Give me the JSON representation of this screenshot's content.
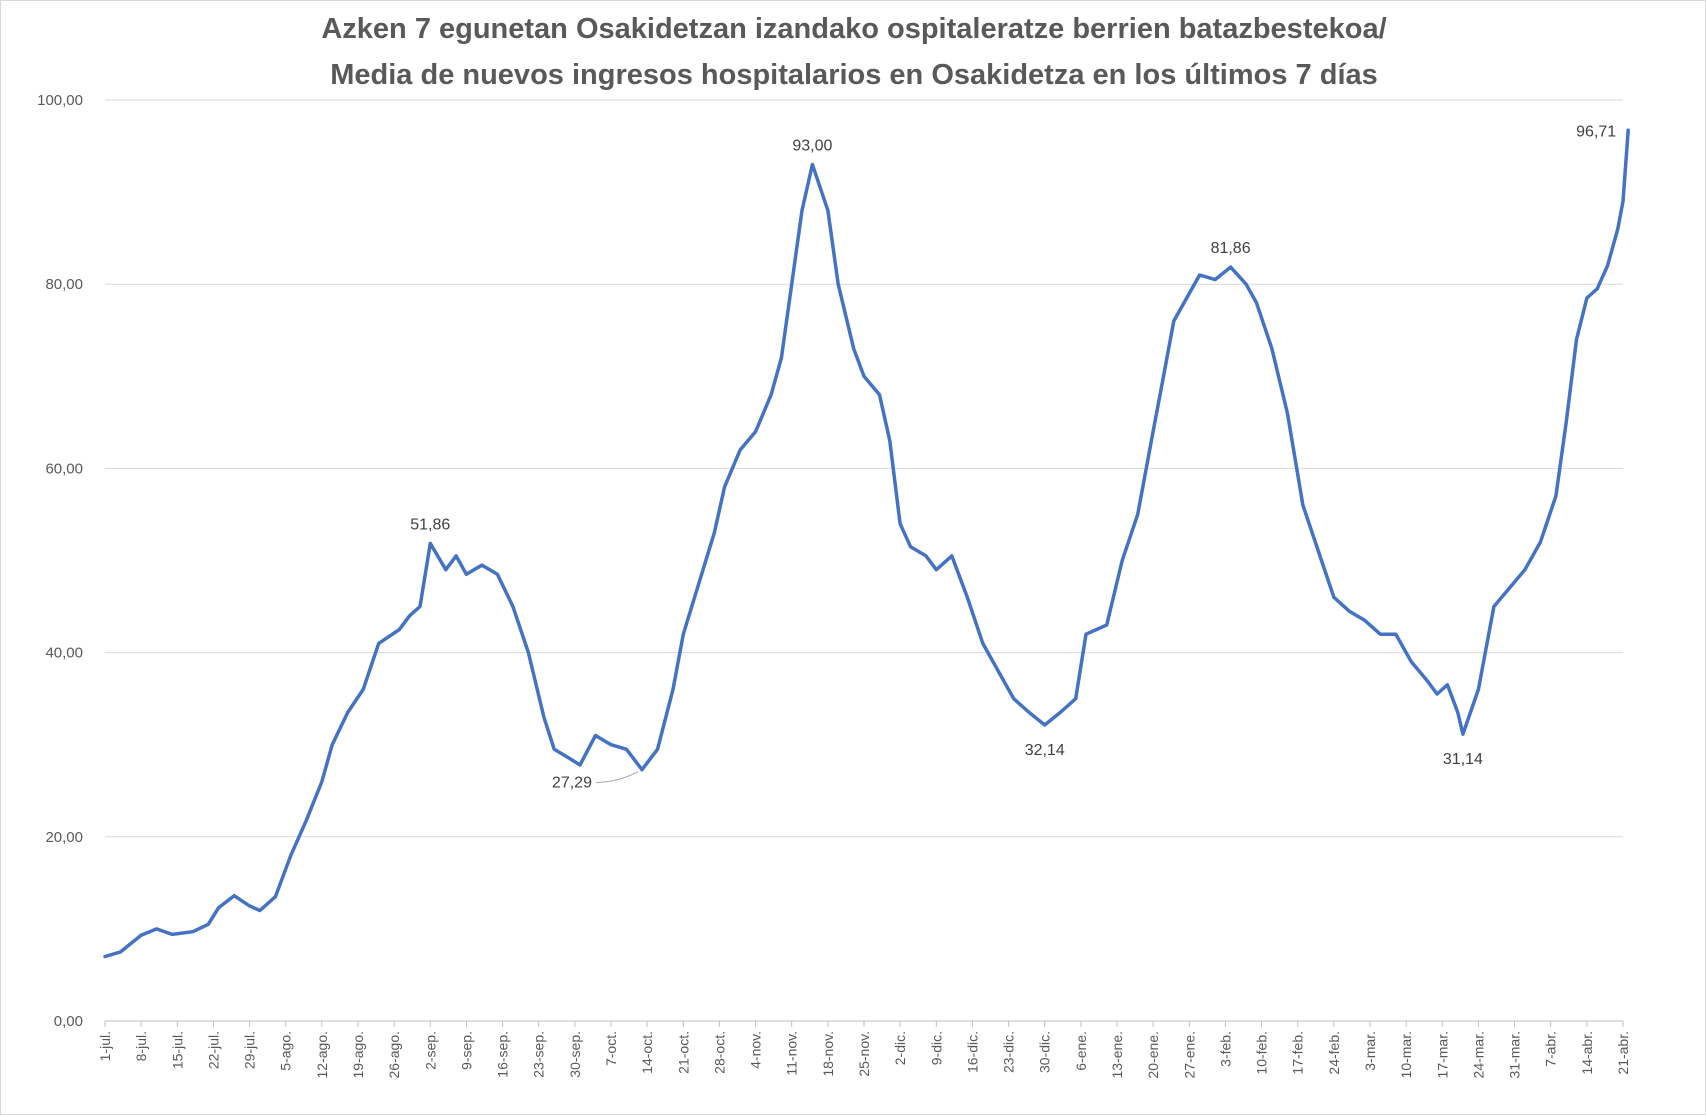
{
  "chart_data": {
    "type": "line",
    "title_line1": "Azken 7 egunetan Osakidetzan izandako ospitaleratze berrien batazbestekoa/",
    "title_line2": "Media de nuevos ingresos hospitalarios en Osakidetza en los últimos 7 días",
    "ylim": [
      0,
      100
    ],
    "yticks": [
      "0,00",
      "20,00",
      "40,00",
      "60,00",
      "80,00",
      "100,00"
    ],
    "grid": true,
    "legend": "none",
    "series_color": "#4472c4",
    "x_start": "1-jul.",
    "x_end": "21-abr.",
    "x_tick_labels": [
      "1-jul.",
      "8-jul.",
      "15-jul.",
      "22-jul.",
      "29-jul.",
      "5-ago.",
      "12-ago.",
      "19-ago.",
      "26-ago.",
      "2-sep.",
      "9-sep.",
      "16-sep.",
      "23-sep.",
      "30-sep.",
      "7-oct.",
      "14-oct.",
      "21-oct.",
      "28-oct.",
      "4-nov.",
      "11-nov.",
      "18-nov.",
      "25-nov.",
      "2-dic.",
      "9-dic.",
      "16-dic.",
      "23-dic.",
      "30-dic.",
      "6-ene.",
      "13-ene.",
      "20-ene.",
      "27-ene.",
      "3-feb.",
      "10-feb.",
      "17-feb.",
      "24-feb.",
      "3-mar.",
      "10-mar.",
      "17-mar.",
      "24-mar.",
      "31-mar.",
      "7-abr.",
      "14-abr.",
      "21-abr."
    ],
    "series": [
      {
        "points": [
          [
            "1-jul.",
            7.0
          ],
          [
            "4-jul.",
            7.5
          ],
          [
            "8-jul.",
            9.3
          ],
          [
            "11-jul.",
            10.0
          ],
          [
            "14-jul.",
            9.4
          ],
          [
            "18-jul.",
            9.7
          ],
          [
            "21-jul.",
            10.5
          ],
          [
            "23-jul.",
            12.3
          ],
          [
            "26-jul.",
            13.6
          ],
          [
            "29-jul.",
            12.5
          ],
          [
            "31-jul.",
            12.0
          ],
          [
            "3-ago.",
            13.5
          ],
          [
            "6-ago.",
            18.0
          ],
          [
            "9-ago.",
            21.8
          ],
          [
            "12-ago.",
            26.0
          ],
          [
            "14-ago.",
            30.0
          ],
          [
            "17-ago.",
            33.5
          ],
          [
            "20-ago.",
            36.0
          ],
          [
            "23-ago.",
            41.0
          ],
          [
            "27-ago.",
            42.5
          ],
          [
            "29-ago.",
            44.0
          ],
          [
            "31-ago.",
            45.0
          ],
          [
            "2-sep.",
            51.86
          ],
          [
            "5-sep.",
            49.0
          ],
          [
            "7-sep.",
            50.5
          ],
          [
            "9-sep.",
            48.5
          ],
          [
            "12-sep.",
            49.5
          ],
          [
            "15-sep.",
            48.5
          ],
          [
            "18-sep.",
            45.0
          ],
          [
            "21-sep.",
            40.0
          ],
          [
            "24-sep.",
            33.0
          ],
          [
            "26-sep.",
            29.5
          ],
          [
            "29-sep.",
            28.5
          ],
          [
            "1-oct.",
            27.8
          ],
          [
            "4-oct.",
            31.0
          ],
          [
            "7-oct.",
            30.0
          ],
          [
            "10-oct.",
            29.5
          ],
          [
            "13-oct.",
            27.29
          ],
          [
            "16-oct.",
            29.5
          ],
          [
            "19-oct.",
            36.0
          ],
          [
            "21-oct.",
            42.0
          ],
          [
            "24-oct.",
            47.5
          ],
          [
            "27-oct.",
            53.0
          ],
          [
            "29-oct.",
            58.0
          ],
          [
            "1-nov.",
            62.0
          ],
          [
            "4-nov.",
            64.0
          ],
          [
            "7-nov.",
            68.0
          ],
          [
            "9-nov.",
            72.0
          ],
          [
            "11-nov.",
            80.0
          ],
          [
            "13-nov.",
            88.0
          ],
          [
            "15-nov.",
            93.0
          ],
          [
            "18-nov.",
            88.0
          ],
          [
            "20-nov.",
            80.0
          ],
          [
            "23-nov.",
            73.0
          ],
          [
            "25-nov.",
            70.0
          ],
          [
            "28-nov.",
            68.0
          ],
          [
            "30-nov.",
            63.0
          ],
          [
            "2-dic.",
            54.0
          ],
          [
            "4-dic.",
            51.5
          ],
          [
            "7-dic.",
            50.5
          ],
          [
            "9-dic.",
            49.0
          ],
          [
            "12-dic.",
            50.5
          ],
          [
            "15-dic.",
            46.0
          ],
          [
            "18-dic.",
            41.0
          ],
          [
            "21-dic.",
            38.0
          ],
          [
            "24-dic.",
            35.0
          ],
          [
            "27-dic.",
            33.5
          ],
          [
            "30-dic.",
            32.14
          ],
          [
            "2-ene.",
            33.5
          ],
          [
            "5-ene.",
            35.0
          ],
          [
            "7-ene.",
            42.0
          ],
          [
            "11-ene.",
            43.0
          ],
          [
            "14-ene.",
            50.0
          ],
          [
            "17-ene.",
            55.0
          ],
          [
            "20-ene.",
            64.0
          ],
          [
            "22-ene.",
            70.0
          ],
          [
            "24-ene.",
            76.0
          ],
          [
            "27-ene.",
            79.0
          ],
          [
            "29-ene.",
            81.0
          ],
          [
            "1-feb.",
            80.5
          ],
          [
            "4-feb.",
            81.86
          ],
          [
            "7-feb.",
            80.0
          ],
          [
            "9-feb.",
            78.0
          ],
          [
            "12-feb.",
            73.0
          ],
          [
            "15-feb.",
            66.0
          ],
          [
            "18-feb.",
            56.0
          ],
          [
            "21-feb.",
            51.0
          ],
          [
            "24-feb.",
            46.0
          ],
          [
            "27-feb.",
            44.5
          ],
          [
            "2-mar.",
            43.5
          ],
          [
            "5-mar.",
            42.0
          ],
          [
            "8-mar.",
            42.0
          ],
          [
            "11-mar.",
            39.0
          ],
          [
            "14-mar.",
            37.0
          ],
          [
            "16-mar.",
            35.5
          ],
          [
            "18-mar.",
            36.5
          ],
          [
            "20-mar.",
            33.5
          ],
          [
            "21-mar.",
            31.14
          ],
          [
            "24-mar.",
            36.0
          ],
          [
            "27-mar.",
            45.0
          ],
          [
            "30-mar.",
            47.0
          ],
          [
            "2-abr.",
            49.0
          ],
          [
            "5-abr.",
            52.0
          ],
          [
            "8-abr.",
            57.0
          ],
          [
            "10-abr.",
            65.0
          ],
          [
            "12-abr.",
            74.0
          ],
          [
            "14-abr.",
            78.5
          ],
          [
            "16-abr.",
            79.5
          ],
          [
            "18-abr.",
            82.0
          ],
          [
            "20-abr.",
            86.0
          ],
          [
            "21-abr.",
            89.0
          ],
          [
            "22-abr.",
            96.71
          ]
        ]
      }
    ],
    "data_labels": [
      {
        "x": "2-sep.",
        "text": "51,86",
        "value": 51.86,
        "position": "above"
      },
      {
        "x": "13-oct.",
        "text": "27,29",
        "value": 27.29,
        "position": "left-below"
      },
      {
        "x": "15-nov.",
        "text": "93,00",
        "value": 93.0,
        "position": "above"
      },
      {
        "x": "30-dic.",
        "text": "32,14",
        "value": 32.14,
        "position": "below"
      },
      {
        "x": "4-feb.",
        "text": "81,86",
        "value": 81.86,
        "position": "above"
      },
      {
        "x": "21-mar.",
        "text": "31,14",
        "value": 31.14,
        "position": "below"
      },
      {
        "x": "22-abr.",
        "text": "96,71",
        "value": 96.71,
        "position": "left"
      }
    ]
  }
}
